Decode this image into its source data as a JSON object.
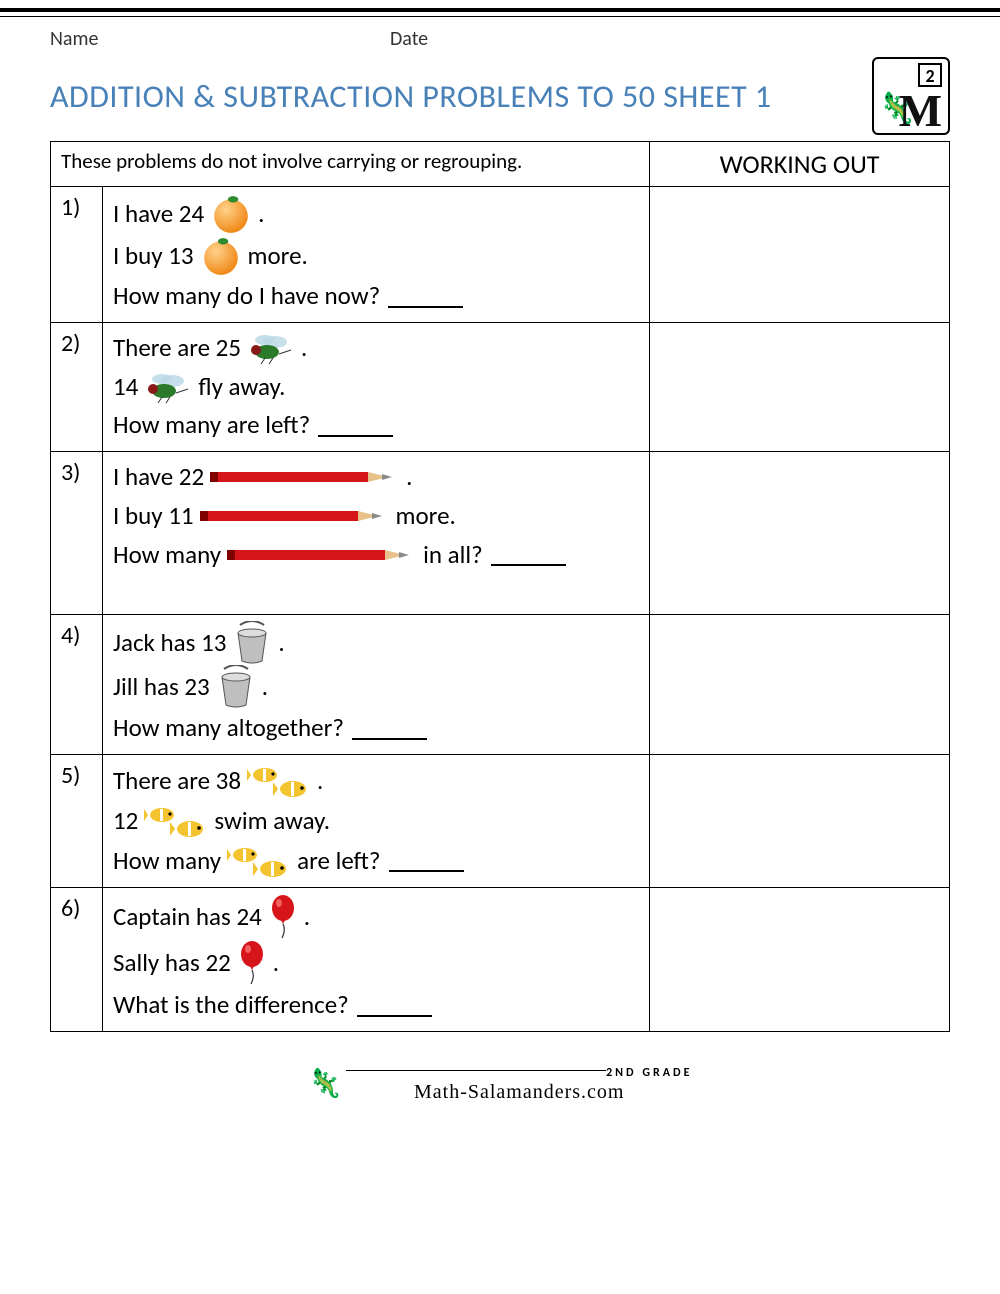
{
  "meta": {
    "name_label": "Name",
    "date_label": "Date"
  },
  "title": "ADDITION & SUBTRACTION PROBLEMS TO 50 SHEET 1",
  "instructions": "These problems do not involve carrying or regrouping.",
  "working_out_header": "WORKING OUT",
  "colors": {
    "title": "#4880b8",
    "border": "#000000",
    "text": "#222222",
    "orange": "#f08a1a",
    "orange_leaf": "#2e8b2e",
    "pencil_red": "#d6151a",
    "pencil_tip": "#8a8a8a",
    "bucket": "#bfbfbf",
    "fish_body": "#f4c430",
    "fish_stripe": "#ffffff",
    "balloon": "#d6151a",
    "fly_body": "#2a7a2a",
    "fly_wing": "#bcd9e8"
  },
  "problems": [
    {
      "n": "1)",
      "icon": "orange",
      "lines": [
        [
          {
            "t": "I have 24 "
          },
          {
            "icon": true
          },
          {
            "t": "."
          }
        ],
        [
          {
            "t": "I buy 13 "
          },
          {
            "icon": true
          },
          {
            "t": " more."
          }
        ],
        [
          {
            "t": "How many do I have now? "
          },
          {
            "blank": true
          }
        ]
      ]
    },
    {
      "n": "2)",
      "icon": "fly",
      "lines": [
        [
          {
            "t": "There are 25 "
          },
          {
            "icon": true
          },
          {
            "t": "."
          }
        ],
        [
          {
            "t": "14 "
          },
          {
            "icon": true
          },
          {
            "t": " fly away."
          }
        ],
        [
          {
            "t": "How many are left? "
          },
          {
            "blank": true
          }
        ]
      ]
    },
    {
      "n": "3)",
      "icon": "pencil",
      "lines": [
        [
          {
            "t": "I have 22 "
          },
          {
            "icon": true
          },
          {
            "t": "."
          }
        ],
        [
          {
            "t": "I buy 11 "
          },
          {
            "icon": true
          },
          {
            "t": " more."
          }
        ],
        [
          {
            "t": "How many "
          },
          {
            "icon": true
          },
          {
            "t": " in all? "
          },
          {
            "blank": true
          }
        ]
      ],
      "extra_pad": true
    },
    {
      "n": "4)",
      "icon": "bucket",
      "lines": [
        [
          {
            "t": "Jack has 13 "
          },
          {
            "icon": true
          },
          {
            "t": "."
          }
        ],
        [
          {
            "t": "Jill has 23 "
          },
          {
            "icon": true
          },
          {
            "t": "."
          }
        ],
        [
          {
            "t": "How many altogether? "
          },
          {
            "blank": true
          }
        ]
      ]
    },
    {
      "n": "5)",
      "icon": "fish",
      "lines": [
        [
          {
            "t": "There are 38 "
          },
          {
            "icon": true
          },
          {
            "t": "."
          }
        ],
        [
          {
            "t": "12 "
          },
          {
            "icon": true
          },
          {
            "t": " swim away."
          }
        ],
        [
          {
            "t": "How many "
          },
          {
            "icon": true
          },
          {
            "t": " are left? "
          },
          {
            "blank": true
          }
        ]
      ]
    },
    {
      "n": "6)",
      "icon": "balloon",
      "lines": [
        [
          {
            "t": "Captain has 24 "
          },
          {
            "icon": true
          },
          {
            "t": "."
          }
        ],
        [
          {
            "t": "Sally has 22 "
          },
          {
            "icon": true
          },
          {
            "t": "."
          }
        ],
        [
          {
            "t": "What is the difference? "
          },
          {
            "blank": true
          }
        ]
      ]
    }
  ],
  "footer": {
    "grade": "2ND GRADE",
    "site": "Math-Salamanders.com"
  }
}
